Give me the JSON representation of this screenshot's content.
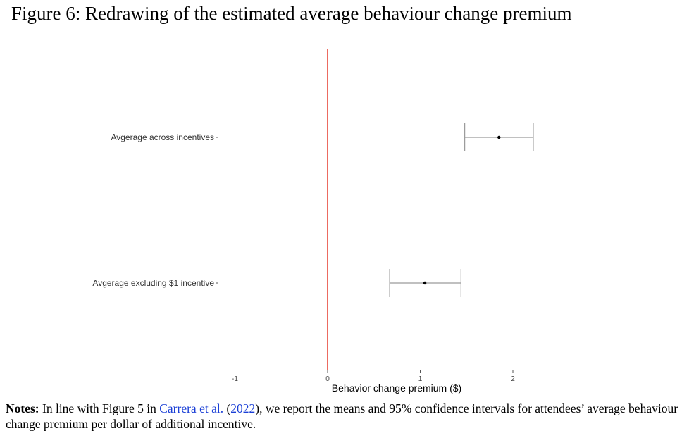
{
  "figure": {
    "title": "Figure 6: Redrawing of the estimated average behaviour change premium"
  },
  "chart_data": {
    "type": "errorbar",
    "xlabel": "Behavior change premium ($)",
    "ylabel": "",
    "xlim": [
      -1,
      2.25
    ],
    "x_ticks": [
      "-1",
      "0",
      "1",
      "2"
    ],
    "x_tick_values": [
      -1,
      0,
      1,
      2
    ],
    "reference_line": {
      "x": 0,
      "color": "#e8463a"
    },
    "categories": [
      "Avgerage across incentives",
      "Avgerage excluding $1 incentive"
    ],
    "estimates": [
      {
        "label": "Avgerage across incentives",
        "mean": 1.85,
        "ci_low": 1.48,
        "ci_high": 2.22
      },
      {
        "label": "Avgerage excluding $1 incentive",
        "mean": 1.05,
        "ci_low": 0.67,
        "ci_high": 1.44
      }
    ],
    "grid": false,
    "colors": {
      "errorbar": "#9a9a9a",
      "point": "#000000"
    }
  },
  "notes": {
    "label": "Notes:",
    "text_before": " In line with Figure 5 in ",
    "citation_authors": "Carrera et al.",
    "paren_open": " (",
    "citation_year": "2022",
    "text_after": "), we report the means and 95% confidence intervals for attendees’ average behaviour change premium per dollar of additional incentive."
  }
}
